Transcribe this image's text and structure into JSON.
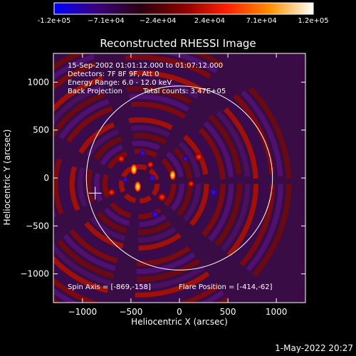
{
  "colorbar": {
    "tick_labels": [
      "-1.2e+05",
      "−7.1e+04",
      "−2.4e+04",
      "2.4e+04",
      "7.1e+04",
      "1.2e+05"
    ],
    "range": [
      -120000,
      120000
    ],
    "colormap": [
      "#0000ff",
      "#3a007a",
      "#2a0010",
      "#8a0000",
      "#ff2000",
      "#ff9000",
      "#ffffff"
    ]
  },
  "annotations": {
    "date_range": "15-Sep-2002 01:01:12.000 to 01:07:12.000",
    "detectors": "Detectors: 7F 8F 9F, Att 0",
    "energy": "Energy Range: 6.0 - 12.0 keV",
    "method": "Back Projection",
    "counts": "Total counts: 3.47E+05",
    "spin_axis": "Spin Axis = [-869,-158]",
    "flare_position": "Flare Position = [-414,-62]"
  },
  "footer": "1-May-2022 20:27",
  "chart_data": {
    "type": "heatmap",
    "title": "Reconstructed RHESSI Image",
    "xlabel": "Heliocentric X (arcsec)",
    "ylabel": "Heliocentric Y (arcsec)",
    "xlim": [
      -1300,
      1300
    ],
    "ylim": [
      -1300,
      1300
    ],
    "x_ticks": [
      -1000,
      -500,
      0,
      500,
      1000
    ],
    "y_ticks": [
      -1000,
      -500,
      0,
      500,
      1000
    ],
    "x_tick_labels": [
      "−1000",
      "−500",
      "0",
      "500",
      "1000"
    ],
    "y_tick_labels": [
      "−1000",
      "−500",
      "0",
      "500",
      "1000"
    ],
    "solar_limb": {
      "center": [
        0,
        0
      ],
      "radius": 960
    },
    "spin_axis": [
      -869,
      -158
    ],
    "flare_position": [
      -414,
      -62
    ],
    "value_range": [
      -120000,
      120000
    ]
  }
}
